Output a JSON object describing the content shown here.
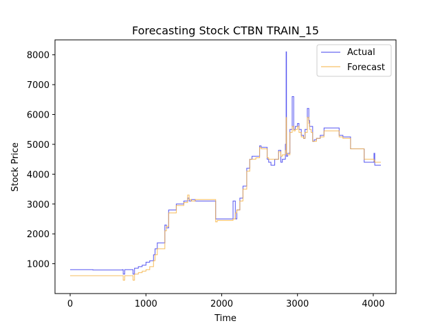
{
  "chart_data": {
    "type": "line",
    "title": "Forecasting Stock CTBN TRAIN_15",
    "xlabel": "Time",
    "ylabel": "Stock Price",
    "xlim": [
      -200,
      4300
    ],
    "ylim": [
      0,
      8500
    ],
    "xticks": [
      0,
      1000,
      2000,
      3000,
      4000
    ],
    "yticks": [
      1000,
      2000,
      3000,
      4000,
      5000,
      6000,
      7000,
      8000
    ],
    "grid": false,
    "legend_position": "top-right",
    "series": [
      {
        "name": "Actual",
        "color": "#4040ee",
        "x": [
          0,
          300,
          690,
          700,
          720,
          820,
          830,
          850,
          900,
          950,
          1000,
          1050,
          1100,
          1120,
          1150,
          1250,
          1270,
          1300,
          1400,
          1500,
          1550,
          1570,
          1600,
          1650,
          1910,
          1920,
          1940,
          2000,
          2140,
          2150,
          2180,
          2200,
          2240,
          2280,
          2330,
          2370,
          2400,
          2450,
          2500,
          2520,
          2600,
          2620,
          2650,
          2700,
          2750,
          2780,
          2800,
          2840,
          2850,
          2855,
          2870,
          2900,
          2930,
          2950,
          2970,
          3000,
          3020,
          3050,
          3080,
          3100,
          3130,
          3150,
          3160,
          3180,
          3200,
          3220,
          3250,
          3300,
          3350,
          3400,
          3500,
          3550,
          3600,
          3700,
          3800,
          3850,
          3880,
          4000,
          4010,
          4020,
          4100
        ],
        "y": [
          800,
          790,
          800,
          650,
          800,
          800,
          650,
          850,
          900,
          950,
          1050,
          1100,
          1300,
          1500,
          1700,
          2300,
          2200,
          2800,
          3000,
          3100,
          3200,
          3100,
          3150,
          3100,
          3100,
          2500,
          2500,
          2500,
          2500,
          3100,
          2500,
          2800,
          3200,
          3600,
          4200,
          4500,
          4600,
          4600,
          4950,
          4900,
          4500,
          4400,
          4300,
          4500,
          4800,
          4400,
          4500,
          5000,
          8100,
          4600,
          4700,
          5500,
          6600,
          5500,
          5600,
          5700,
          5500,
          5300,
          5200,
          5500,
          6200,
          5800,
          5600,
          5600,
          5100,
          5150,
          5200,
          5300,
          5550,
          5550,
          5550,
          5300,
          5250,
          4850,
          4850,
          4850,
          4400,
          4400,
          4700,
          4300,
          4300
        ]
      },
      {
        "name": "Forecast",
        "color": "#f5b040",
        "x": [
          0,
          300,
          690,
          700,
          720,
          820,
          830,
          850,
          900,
          950,
          1000,
          1050,
          1100,
          1120,
          1150,
          1250,
          1270,
          1300,
          1400,
          1500,
          1550,
          1570,
          1600,
          1650,
          1910,
          1920,
          1940,
          2000,
          2140,
          2150,
          2180,
          2200,
          2240,
          2280,
          2330,
          2370,
          2400,
          2450,
          2500,
          2520,
          2600,
          2620,
          2650,
          2700,
          2750,
          2780,
          2800,
          2840,
          2850,
          2855,
          2870,
          2900,
          2930,
          2950,
          2970,
          3000,
          3020,
          3050,
          3080,
          3100,
          3130,
          3150,
          3160,
          3180,
          3200,
          3220,
          3250,
          3300,
          3350,
          3400,
          3500,
          3550,
          3600,
          3700,
          3800,
          3850,
          3880,
          4000,
          4010,
          4020,
          4100
        ],
        "y": [
          600,
          600,
          600,
          450,
          600,
          600,
          450,
          650,
          700,
          750,
          800,
          900,
          1100,
          1300,
          1500,
          2100,
          2250,
          2700,
          2950,
          3050,
          3300,
          3150,
          3100,
          3150,
          3150,
          2400,
          2450,
          2450,
          2450,
          2500,
          2700,
          2800,
          3100,
          3500,
          4100,
          4500,
          4500,
          4550,
          4900,
          4850,
          4550,
          4500,
          4500,
          4500,
          4750,
          4600,
          4650,
          4800,
          5900,
          4700,
          4650,
          5400,
          5600,
          5450,
          5500,
          5600,
          5400,
          5250,
          5200,
          5400,
          5900,
          5700,
          5500,
          5400,
          5100,
          5100,
          5200,
          5250,
          5450,
          5450,
          5450,
          5250,
          5200,
          4850,
          4850,
          4850,
          4500,
          4500,
          4450,
          4400,
          4400
        ]
      }
    ]
  }
}
